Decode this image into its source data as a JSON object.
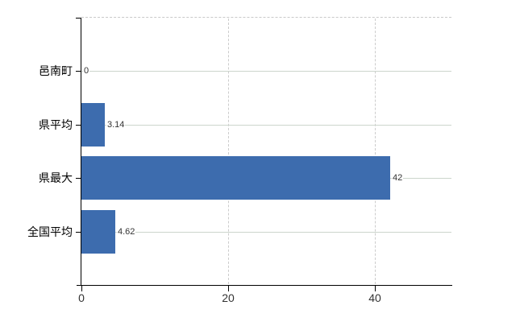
{
  "chart_data": {
    "type": "bar",
    "orientation": "horizontal",
    "title": "",
    "xlabel": "",
    "ylabel": "",
    "categories": [
      "邑南町",
      "県平均",
      "県最大",
      "全国平均"
    ],
    "values": [
      0,
      3.14,
      42,
      4.62
    ],
    "value_labels": [
      "0",
      "3.14",
      "42",
      "4.62"
    ],
    "x_ticks": [
      0,
      20,
      40
    ],
    "x_tick_labels": [
      "0",
      "20",
      "40"
    ],
    "xlim": [
      0,
      50.4
    ],
    "grid": true,
    "legend": false,
    "colors": {
      "bar": "#3d6cae",
      "horizontal_gridline": "#ccd5cc",
      "vertical_gridline": "#cccccc",
      "top_border": "#c9c9c9",
      "axis": "#000000",
      "category_label": "#000000",
      "value_label": "#333333",
      "tick_label": "#333333",
      "background": "#ffffff"
    }
  }
}
